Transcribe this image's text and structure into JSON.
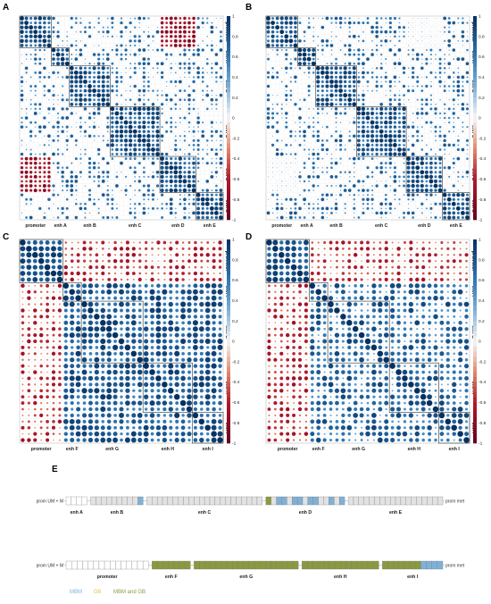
{
  "panel_labels": [
    "A",
    "B",
    "C",
    "D",
    "E"
  ],
  "chart_data": [
    {
      "type": "heatmap",
      "panel": "A",
      "groups": [
        "promoter",
        "enh A",
        "enh B",
        "enh C",
        "enh D",
        "enh E"
      ],
      "sizes": [
        7,
        4,
        9,
        11,
        8,
        6
      ],
      "colorbar": {
        "min": -1,
        "max": 1,
        "ticks": [
          "1",
          "0.8",
          "0.6",
          "0.4",
          "0.2",
          "0",
          "-0.2",
          "-0.4",
          "-0.6",
          "-0.8",
          "-1"
        ]
      },
      "legend_position": "right",
      "grid": true
    },
    {
      "type": "heatmap",
      "panel": "B",
      "groups": [
        "promoter",
        "enh A",
        "enh B",
        "enh C",
        "enh D",
        "enh E"
      ],
      "sizes": [
        7,
        4,
        9,
        11,
        8,
        6
      ],
      "colorbar": {
        "min": -1,
        "max": 1,
        "ticks": [
          "1",
          "0.8",
          "0.6",
          "0.4",
          "0.2",
          "0",
          "-0.2",
          "-0.4",
          "-0.6",
          "-0.8",
          "-1"
        ]
      },
      "legend_position": "right",
      "grid": true
    },
    {
      "type": "heatmap",
      "panel": "C",
      "groups": [
        "promoter",
        "enh F",
        "enh G",
        "enh H",
        "enh I"
      ],
      "sizes": [
        7,
        3,
        10,
        8,
        5
      ],
      "colorbar": {
        "min": -1,
        "max": 1,
        "ticks": [
          "1",
          "0.8",
          "0.6",
          "0.4",
          "0.2",
          "0",
          "-0.2",
          "-0.4",
          "-0.6",
          "-0.8",
          "-1"
        ]
      },
      "legend_position": "right",
      "grid": true
    },
    {
      "type": "heatmap",
      "panel": "D",
      "groups": [
        "promoter",
        "enh F",
        "enh G",
        "enh H",
        "enh I"
      ],
      "sizes": [
        7,
        3,
        10,
        8,
        5
      ],
      "colorbar": {
        "min": -1,
        "max": 1,
        "ticks": [
          "1",
          "0.8",
          "0.6",
          "0.4",
          "0.2",
          "0",
          "-0.2",
          "-0.4",
          "-0.6",
          "-0.8",
          "-1"
        ]
      },
      "legend_position": "right",
      "grid": true
    }
  ],
  "panel_e": {
    "rows": [
      {
        "left_label": "prom UM + M",
        "right_label": "prom met",
        "groups": [
          {
            "name": "enh A",
            "cells": [
              "w",
              "w",
              "w",
              "w"
            ]
          },
          {
            "name": "enh B",
            "cells": [
              "g",
              "g",
              "g",
              "g",
              "g",
              "g",
              "g",
              "g",
              "g",
              "b"
            ]
          },
          {
            "name": "enh C",
            "cells": [
              "g",
              "g",
              "g",
              "g",
              "g",
              "g",
              "g",
              "g",
              "g",
              "g",
              "g",
              "g",
              "g",
              "g",
              "g",
              "g",
              "g",
              "g",
              "g",
              "g",
              "g",
              "g"
            ]
          },
          {
            "name": "enh D",
            "cells": [
              "o",
              "g",
              "b",
              "b",
              "g",
              "b",
              "b",
              "g",
              "b",
              "b",
              "g",
              "g",
              "b",
              "g",
              "b"
            ]
          },
          {
            "name": "enh E",
            "cells": [
              "g",
              "g",
              "g",
              "g",
              "g",
              "g",
              "g",
              "g",
              "g",
              "g",
              "g",
              "g",
              "g",
              "g",
              "g",
              "g",
              "g",
              "g"
            ]
          }
        ]
      },
      {
        "left_label": "prom UM + M",
        "right_label": "prom met",
        "groups": [
          {
            "name": "promoter",
            "cells": [
              "w",
              "w",
              "w",
              "w",
              "w",
              "w",
              "w",
              "w",
              "w",
              "w",
              "w",
              "w",
              "w",
              "w",
              "w"
            ]
          },
          {
            "name": "enh F",
            "cells": [
              "o",
              "o",
              "o",
              "o",
              "o",
              "o",
              "o"
            ]
          },
          {
            "name": "enh G",
            "cells": [
              "o",
              "o",
              "o",
              "o",
              "o",
              "o",
              "o",
              "o",
              "o",
              "o",
              "o",
              "o",
              "o",
              "o",
              "o",
              "o",
              "o",
              "o",
              "o"
            ]
          },
          {
            "name": "enh H",
            "cells": [
              "o",
              "o",
              "o",
              "o",
              "o",
              "o",
              "o",
              "o",
              "o",
              "o",
              "o",
              "o",
              "o",
              "o"
            ]
          },
          {
            "name": "enh I",
            "cells": [
              "o",
              "o",
              "o",
              "o",
              "o",
              "o",
              "o",
              "b",
              "b",
              "b",
              "b"
            ]
          }
        ]
      }
    ],
    "legend": [
      {
        "label": "MBM",
        "color": "#7fb1d8"
      },
      {
        "label": "GB",
        "color": "#e1c24a"
      },
      {
        "label": "MBM and GB",
        "color": "#8b9940"
      }
    ]
  },
  "colors": {
    "pos": "#053061",
    "neg": "#67001f",
    "mbm": "#7fb1d8",
    "gb": "#e1c24a",
    "both": "#8b9940",
    "grey_cell": "#e2e2e2"
  }
}
